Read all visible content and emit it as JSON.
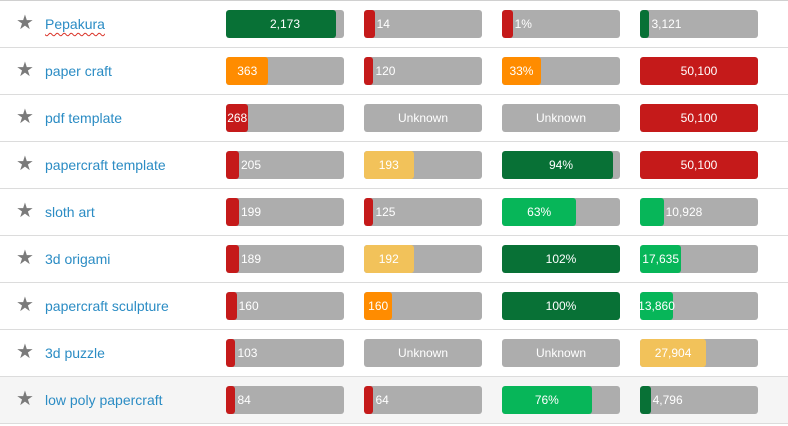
{
  "colors": {
    "dark_green": "#087136",
    "green": "#07b659",
    "red": "#c51a1a",
    "orange": "#ff8c00",
    "yellow": "#f2c25a",
    "grey": "#adadad"
  },
  "rows": [
    {
      "keyword": "Pepakura",
      "spell": true,
      "highlight": false,
      "cells": [
        {
          "label": "2,173",
          "fill": 0.93,
          "color": "dark_green",
          "align": "center"
        },
        {
          "label": "14",
          "fill": 0.09,
          "color": "red",
          "align": "after"
        },
        {
          "label": "1%",
          "fill": 0.09,
          "color": "red",
          "align": "after"
        },
        {
          "label": "3,121",
          "fill": 0.08,
          "color": "dark_green",
          "align": "after"
        }
      ]
    },
    {
      "keyword": "paper craft",
      "spell": false,
      "highlight": false,
      "cells": [
        {
          "label": "363",
          "fill": 0.36,
          "color": "orange",
          "align": "center"
        },
        {
          "label": "120",
          "fill": 0.08,
          "color": "red",
          "align": "after"
        },
        {
          "label": "33%",
          "fill": 0.33,
          "color": "orange",
          "align": "center"
        },
        {
          "label": "50,100",
          "fill": 1.0,
          "color": "red",
          "align": "center"
        }
      ]
    },
    {
      "keyword": "pdf template",
      "spell": false,
      "highlight": false,
      "cells": [
        {
          "label": "268",
          "fill": 0.19,
          "color": "red",
          "align": "center"
        },
        {
          "label": "Unknown",
          "fill": 0,
          "color": "grey",
          "align": "center"
        },
        {
          "label": "Unknown",
          "fill": 0,
          "color": "grey",
          "align": "center"
        },
        {
          "label": "50,100",
          "fill": 1.0,
          "color": "red",
          "align": "center"
        }
      ]
    },
    {
      "keyword": "papercraft template",
      "spell": false,
      "highlight": false,
      "cells": [
        {
          "label": "205",
          "fill": 0.11,
          "color": "red",
          "align": "after"
        },
        {
          "label": "193",
          "fill": 0.42,
          "color": "yellow",
          "align": "center"
        },
        {
          "label": "94%",
          "fill": 0.94,
          "color": "dark_green",
          "align": "center"
        },
        {
          "label": "50,100",
          "fill": 1.0,
          "color": "red",
          "align": "center"
        }
      ]
    },
    {
      "keyword": "sloth art",
      "spell": false,
      "highlight": false,
      "cells": [
        {
          "label": "199",
          "fill": 0.11,
          "color": "red",
          "align": "after"
        },
        {
          "label": "125",
          "fill": 0.08,
          "color": "red",
          "align": "after"
        },
        {
          "label": "63%",
          "fill": 0.63,
          "color": "green",
          "align": "center"
        },
        {
          "label": "10,928",
          "fill": 0.2,
          "color": "green",
          "align": "after"
        }
      ]
    },
    {
      "keyword": "3d origami",
      "spell": false,
      "highlight": false,
      "cells": [
        {
          "label": "189",
          "fill": 0.11,
          "color": "red",
          "align": "after"
        },
        {
          "label": "192",
          "fill": 0.42,
          "color": "yellow",
          "align": "center"
        },
        {
          "label": "102%",
          "fill": 1.0,
          "color": "dark_green",
          "align": "center"
        },
        {
          "label": "17,635",
          "fill": 0.35,
          "color": "green",
          "align": "center"
        }
      ]
    },
    {
      "keyword": "papercraft sculpture",
      "spell": false,
      "highlight": false,
      "cells": [
        {
          "label": "160",
          "fill": 0.09,
          "color": "red",
          "align": "after"
        },
        {
          "label": "160",
          "fill": 0.24,
          "color": "orange",
          "align": "center"
        },
        {
          "label": "100%",
          "fill": 1.0,
          "color": "dark_green",
          "align": "center"
        },
        {
          "label": "13,860",
          "fill": 0.28,
          "color": "green",
          "align": "center"
        }
      ]
    },
    {
      "keyword": "3d puzzle",
      "spell": false,
      "highlight": false,
      "cells": [
        {
          "label": "103",
          "fill": 0.08,
          "color": "red",
          "align": "after"
        },
        {
          "label": "Unknown",
          "fill": 0,
          "color": "grey",
          "align": "center"
        },
        {
          "label": "Unknown",
          "fill": 0,
          "color": "grey",
          "align": "center"
        },
        {
          "label": "27,904",
          "fill": 0.56,
          "color": "yellow",
          "align": "center"
        }
      ]
    },
    {
      "keyword": "low poly papercraft",
      "spell": false,
      "highlight": true,
      "cells": [
        {
          "label": "84",
          "fill": 0.08,
          "color": "red",
          "align": "after"
        },
        {
          "label": "64",
          "fill": 0.08,
          "color": "red",
          "align": "after"
        },
        {
          "label": "76%",
          "fill": 0.76,
          "color": "green",
          "align": "center"
        },
        {
          "label": "4,796",
          "fill": 0.09,
          "color": "dark_green",
          "align": "after"
        }
      ]
    }
  ]
}
